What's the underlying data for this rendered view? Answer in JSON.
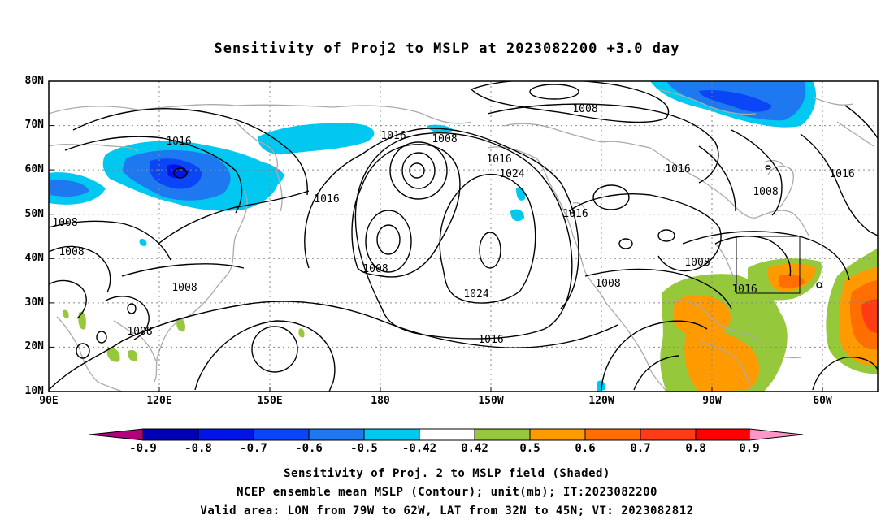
{
  "title": "Sensitivity of Proj2 to MSLP at 2023082200 +3.0 day",
  "axes": {
    "lat_labels": [
      "80N",
      "70N",
      "60N",
      "50N",
      "40N",
      "30N",
      "20N",
      "10N"
    ],
    "lon_labels": [
      "90E",
      "120E",
      "150E",
      "180",
      "150W",
      "120W",
      "90W",
      "60W"
    ]
  },
  "contour_labels": [
    "1016",
    "1016",
    "1008",
    "1016",
    "1008",
    "1016",
    "1024",
    "1008",
    "1016",
    "1008",
    "1016",
    "1008",
    "1008",
    "1008",
    "1008",
    "1024",
    "1016",
    "1016",
    "1008",
    "1008",
    "1016"
  ],
  "colorbar": {
    "tick_labels": [
      "-0.9",
      "-0.8",
      "-0.7",
      "-0.6",
      "-0.5",
      "-0.42",
      "0.42",
      "0.5",
      "0.6",
      "0.7",
      "0.8",
      "0.9"
    ],
    "colors": [
      "#b0007a",
      "#0000b4",
      "#0014e6",
      "#0a46f5",
      "#1e78f0",
      "#2d9ef5",
      "#00c8f0",
      "#ffffff",
      "#96c83c",
      "#ff9b00",
      "#ff6e00",
      "#ff3c14",
      "#ff0000",
      "#ff96c8"
    ]
  },
  "captions": [
    "Sensitivity of Proj. 2 to MSLP field (Shaded)",
    "NCEP ensemble mean MSLP (Contour); unit(mb); IT:2023082200",
    "Valid area: LON from 79W to 62W, LAT from 32N to 45N; VT: 2023082812"
  ]
}
